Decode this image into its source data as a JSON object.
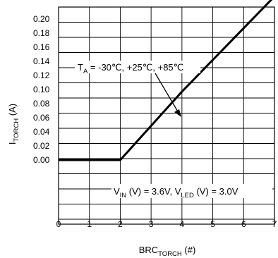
{
  "chart_data": {
    "type": "line",
    "xlabel": {
      "main": "BRC",
      "sub": "TORCH",
      "unit": " (#)"
    },
    "ylabel": {
      "main": "I",
      "sub": "TORCH",
      "unit": " (A)"
    },
    "xlim": [
      0,
      7
    ],
    "ylim": [
      0,
      0.2
    ],
    "x_ticks": [
      "0",
      "1",
      "2",
      "3",
      "4",
      "5",
      "6",
      "7"
    ],
    "y_ticks": [
      "0.20",
      "0.18",
      "0.16",
      "0.14",
      "0.12",
      "0.10",
      "0.08",
      "0.06",
      "0.04",
      "0.02",
      "0.00"
    ],
    "grid": true,
    "series": [
      {
        "name": "",
        "x": [
          0,
          2,
          4,
          7
        ],
        "y": [
          0.0,
          0.0,
          0.097,
          0.232
        ]
      }
    ],
    "annotations": {
      "temp": {
        "pre": "T",
        "sub": "A",
        "post": " = -30℃, +25℃, +85℃"
      },
      "conditions": {
        "a_pre": "V",
        "a_sub": "IN",
        "a_post": " (V) = 3.6V, ",
        "b_pre": "V",
        "b_sub": "LED",
        "b_post": " (V) = 3.0V"
      }
    }
  }
}
